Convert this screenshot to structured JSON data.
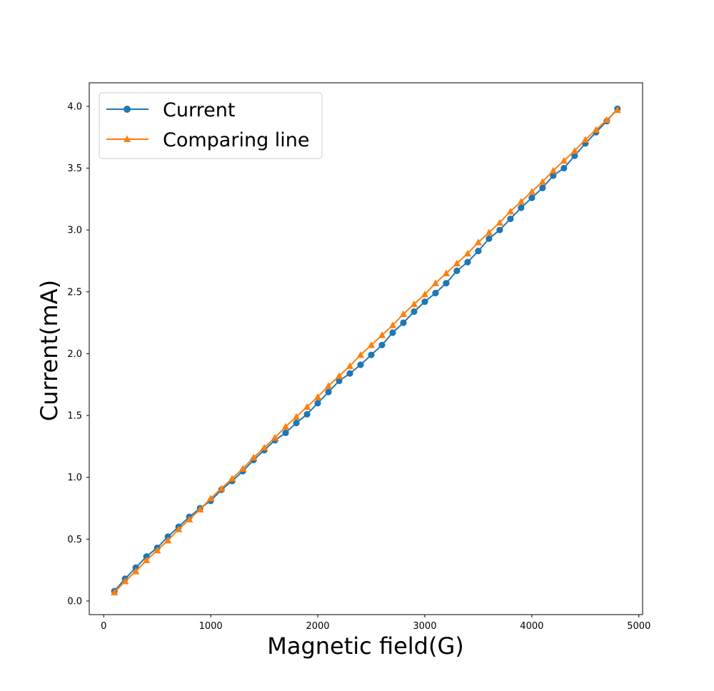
{
  "chart_data": {
    "type": "line",
    "title": "",
    "xlabel": "Magnetic field(G)",
    "ylabel": "Current(mA)",
    "xlim": [
      -135,
      5035
    ],
    "ylim": [
      -0.11,
      4.19
    ],
    "xticks": [
      0,
      1000,
      2000,
      3000,
      4000,
      5000
    ],
    "yticks": [
      0.0,
      0.5,
      1.0,
      1.5,
      2.0,
      2.5,
      3.0,
      3.5,
      4.0
    ],
    "xtick_labels": [
      "0",
      "1000",
      "2000",
      "3000",
      "4000",
      "5000"
    ],
    "ytick_labels": [
      "0.0",
      "0.5",
      "1.0",
      "1.5",
      "2.0",
      "2.5",
      "3.0",
      "3.5",
      "4.0"
    ],
    "grid": false,
    "legend_position": "upper-left",
    "x": [
      100,
      200,
      300,
      400,
      500,
      600,
      700,
      800,
      900,
      1000,
      1100,
      1200,
      1300,
      1400,
      1500,
      1600,
      1700,
      1800,
      1900,
      2000,
      2100,
      2200,
      2300,
      2400,
      2500,
      2600,
      2700,
      2800,
      2900,
      3000,
      3100,
      3200,
      3300,
      3400,
      3500,
      3600,
      3700,
      3800,
      3900,
      4000,
      4100,
      4200,
      4300,
      4400,
      4500,
      4600,
      4700,
      4800
    ],
    "series": [
      {
        "name": "Current",
        "color": "#1f77b4",
        "marker": "circle",
        "values": [
          0.08,
          0.18,
          0.27,
          0.36,
          0.43,
          0.52,
          0.6,
          0.68,
          0.75,
          0.81,
          0.9,
          0.97,
          1.05,
          1.14,
          1.22,
          1.3,
          1.36,
          1.44,
          1.51,
          1.6,
          1.69,
          1.78,
          1.84,
          1.91,
          1.99,
          2.07,
          2.17,
          2.25,
          2.34,
          2.42,
          2.49,
          2.57,
          2.67,
          2.74,
          2.83,
          2.93,
          3.0,
          3.09,
          3.18,
          3.26,
          3.34,
          3.44,
          3.5,
          3.6,
          3.7,
          3.79,
          3.88,
          3.98
        ]
      },
      {
        "name": "Comparing line",
        "color": "#ff7f0e",
        "marker": "triangle",
        "values": [
          0.07,
          0.16,
          0.24,
          0.33,
          0.41,
          0.49,
          0.58,
          0.66,
          0.74,
          0.83,
          0.91,
          0.99,
          1.07,
          1.16,
          1.24,
          1.32,
          1.41,
          1.49,
          1.57,
          1.65,
          1.74,
          1.82,
          1.9,
          1.99,
          2.07,
          2.15,
          2.23,
          2.32,
          2.4,
          2.48,
          2.57,
          2.65,
          2.73,
          2.81,
          2.9,
          2.98,
          3.06,
          3.15,
          3.23,
          3.31,
          3.39,
          3.48,
          3.56,
          3.64,
          3.73,
          3.81,
          3.89,
          3.97
        ]
      }
    ]
  }
}
